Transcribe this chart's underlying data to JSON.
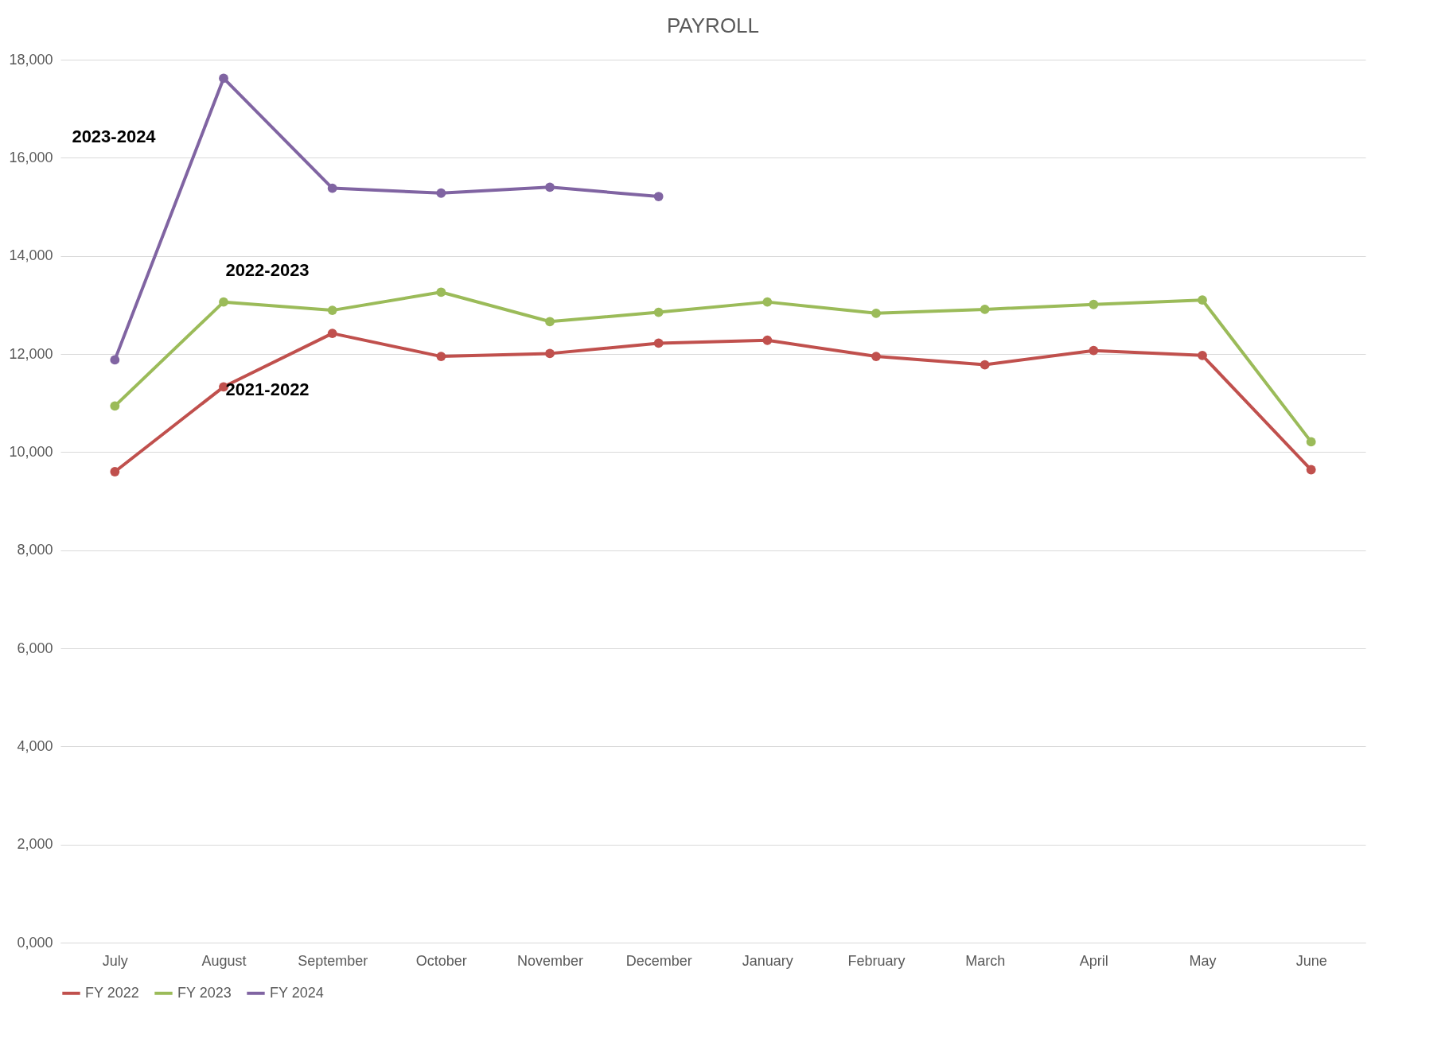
{
  "chart_data": {
    "type": "line",
    "title": "PAYROLL",
    "categories": [
      "July",
      "August",
      "September",
      "October",
      "November",
      "December",
      "January",
      "February",
      "March",
      "April",
      "May",
      "June"
    ],
    "series": [
      {
        "name": "FY 2022",
        "color": "#c0504d",
        "values": [
          9600,
          11330,
          12420,
          11950,
          12010,
          12220,
          12280,
          11950,
          11780,
          12070,
          11970,
          9640
        ]
      },
      {
        "name": "FY 2023",
        "color": "#9bbb59",
        "values": [
          10940,
          13060,
          12890,
          13260,
          12660,
          12850,
          13060,
          12830,
          12910,
          13010,
          13100,
          10210
        ]
      },
      {
        "name": "FY 2024",
        "color": "#8064a2",
        "values": [
          11880,
          17620,
          15380,
          15280,
          15400,
          15210,
          null,
          null,
          null,
          null,
          null,
          null
        ]
      }
    ],
    "ylim": [
      0,
      18000
    ],
    "yticks": [
      {
        "value": 0,
        "label": "0,000"
      },
      {
        "value": 2000,
        "label": "2,000"
      },
      {
        "value": 4000,
        "label": "4,000"
      },
      {
        "value": 6000,
        "label": "6,000"
      },
      {
        "value": 8000,
        "label": "8,000"
      },
      {
        "value": 10000,
        "label": "10,000"
      },
      {
        "value": 12000,
        "label": "12,000"
      },
      {
        "value": 14000,
        "label": "14,000"
      },
      {
        "value": 16000,
        "label": "16,000"
      },
      {
        "value": 18000,
        "label": "18,000"
      }
    ],
    "annotations": [
      "2023-2024",
      "2022-2023",
      "2021-2022"
    ],
    "grid": "y",
    "legend": "bottom",
    "marker": "circle",
    "line_style": "solid"
  }
}
